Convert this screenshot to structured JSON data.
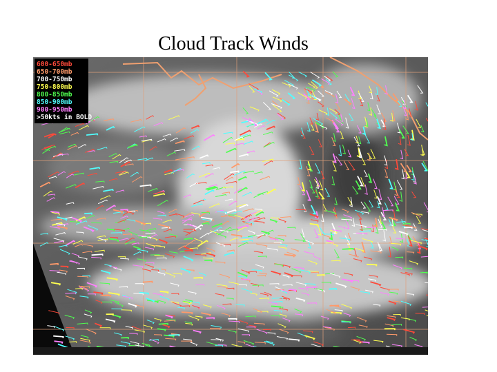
{
  "title": "Cloud Track Winds",
  "legend": [
    {
      "label": "600-650mb",
      "color": "#ff4a3a"
    },
    {
      "label": "650-700mb",
      "color": "#ff9a6a"
    },
    {
      "label": "700-750mb",
      "color": "#ffffff"
    },
    {
      "label": "750-800mb",
      "color": "#ffff50"
    },
    {
      "label": "800-850mb",
      "color": "#50ff50"
    },
    {
      "label": "850-900mb",
      "color": "#50ffff"
    },
    {
      "label": "900-950mb",
      "color": "#ff80ff"
    },
    {
      "label": ">50kts in BOLD",
      "color": "#ffffff"
    }
  ]
}
